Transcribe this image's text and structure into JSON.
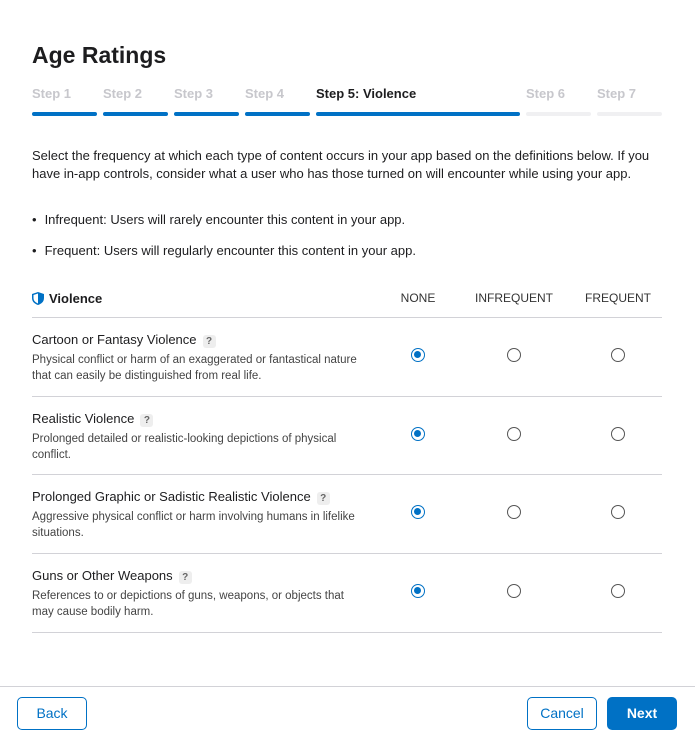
{
  "header": {
    "title": "Age Ratings"
  },
  "steps": [
    {
      "label": "Step 1",
      "state": "done"
    },
    {
      "label": "Step 2",
      "state": "done"
    },
    {
      "label": "Step 3",
      "state": "done"
    },
    {
      "label": "Step 4",
      "state": "done"
    },
    {
      "label": "Step 5: Violence",
      "state": "current"
    },
    {
      "label": "Step 6",
      "state": "todo"
    },
    {
      "label": "Step 7",
      "state": "todo"
    }
  ],
  "intro": "Select the frequency at which each type of content occurs in your app based on the definitions below. If you have in-app controls, consider what a user who has those turned on will encounter while using your app.",
  "bullets": [
    "Infrequent: Users will rarely encounter this content in your app.",
    "Frequent: Users will regularly encounter this content in your app."
  ],
  "table": {
    "title": "Violence",
    "columns": [
      "NONE",
      "INFREQUENT",
      "FREQUENT"
    ],
    "rows": [
      {
        "name": "Cartoon or Fantasy Violence",
        "help": "?",
        "description": "Physical conflict or harm of an exaggerated or fantastical nature that can easily be distinguished from real life.",
        "selected": 0
      },
      {
        "name": "Realistic Violence",
        "help": "?",
        "description": "Prolonged detailed or realistic-looking depictions of physical conflict.",
        "selected": 0
      },
      {
        "name": "Prolonged Graphic or Sadistic Realistic Violence",
        "help": "?",
        "description": "Aggressive physical conflict or harm involving humans in lifelike situations.",
        "selected": 0
      },
      {
        "name": "Guns or Other Weapons",
        "help": "?",
        "description": "References to or depictions of guns, weapons, or objects that may cause bodily harm.",
        "selected": 0
      }
    ]
  },
  "footer": {
    "back": "Back",
    "cancel": "Cancel",
    "next": "Next"
  }
}
